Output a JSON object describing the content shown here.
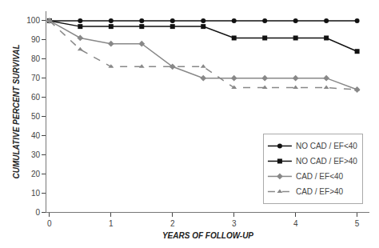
{
  "chart_data": {
    "type": "line",
    "xlabel": "YEARS OF FOLLOW-UP",
    "ylabel": "CUMULATIVE PERCENT SURVIVAL",
    "x": [
      0,
      0.5,
      1.0,
      1.5,
      2.0,
      2.5,
      3.0,
      3.5,
      4.0,
      4.5,
      5.0
    ],
    "series": [
      {
        "name": "NO CAD / EF<40",
        "color": "#111111",
        "marker": "circle",
        "line_style": "solid",
        "values": [
          100,
          100,
          100,
          100,
          100,
          100,
          100,
          100,
          100,
          100,
          100
        ]
      },
      {
        "name": "NO CAD / EF>40",
        "color": "#111111",
        "marker": "square",
        "line_style": "solid",
        "values": [
          100,
          97,
          97,
          97,
          97,
          97,
          91,
          91,
          91,
          91,
          84
        ]
      },
      {
        "name": "CAD / EF<40",
        "color": "#888888",
        "marker": "diamond",
        "line_style": "solid",
        "values": [
          100,
          91,
          88,
          88,
          76,
          70,
          70,
          70,
          70,
          70,
          64
        ]
      },
      {
        "name": "CAD / EF>40",
        "color": "#888888",
        "marker": "triangle-up",
        "line_style": "dashed",
        "values": [
          100,
          85,
          76,
          76,
          76,
          76,
          65,
          65,
          65,
          65,
          64
        ]
      }
    ],
    "xlim": [
      -0.05,
      5.2
    ],
    "ylim": [
      0,
      105
    ],
    "xticks": [
      0,
      1,
      2,
      3,
      4,
      5
    ],
    "yticks": [
      0,
      10,
      20,
      30,
      40,
      50,
      60,
      70,
      80,
      90,
      100
    ],
    "grid": false,
    "legend": "lower right"
  }
}
